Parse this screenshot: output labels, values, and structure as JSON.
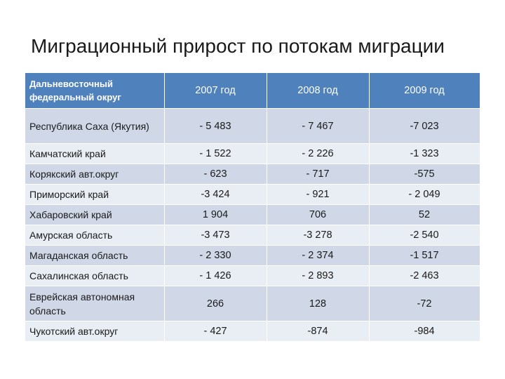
{
  "title": "Миграционный прирост по потокам миграции",
  "table": {
    "headers": [
      "Дальневосточный федеральный округ",
      "2007 год",
      "2008 год",
      "2009 год"
    ],
    "rows": [
      [
        "Республика Саха (Якутия)",
        "- 5 483",
        "- 7 467",
        "-7 023"
      ],
      [
        "Камчатский край",
        "- 1 522",
        "- 2 226",
        "-1 323"
      ],
      [
        "Корякский авт.округ",
        "- 623",
        "- 717",
        "-575"
      ],
      [
        "Приморский край",
        "-3 424",
        "- 921",
        "- 2 049"
      ],
      [
        "Хабаровский край",
        "1 904",
        "706",
        "52"
      ],
      [
        "Амурская область",
        "-3 473",
        "-3 278",
        "-2 540"
      ],
      [
        "Магаданская область",
        "- 2 330",
        "- 2 374",
        "-1 517"
      ],
      [
        "Сахалинская область",
        "- 1 426",
        "- 2 893",
        "-2 463"
      ],
      [
        "Еврейская автономная область",
        "266",
        "128",
        "-72"
      ],
      [
        "Чукотский авт.округ",
        "- 427",
        "-874",
        "-984"
      ]
    ]
  }
}
